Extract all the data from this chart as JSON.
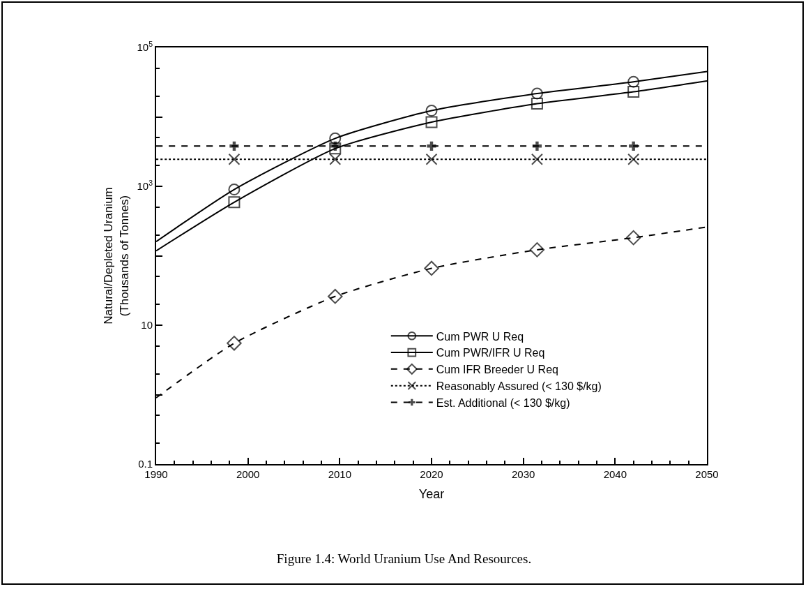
{
  "chart_data": {
    "type": "line",
    "xlabel": "Year",
    "ylabel": "Natural/Depleted Uranium\n(Thousands of Tonnes)",
    "xlim": [
      1990,
      2050
    ],
    "xticks": [
      1990,
      2000,
      2010,
      2020,
      2030,
      2040,
      2050
    ],
    "ylim": [
      0.1,
      100000
    ],
    "yticks": [
      0.1,
      {
        "value": 1,
        "label": null
      },
      10,
      {
        "value": 100,
        "label": null
      },
      {
        "value": 1000,
        "label": "10$^{3}$"
      },
      {
        "value": 10000,
        "label": null
      },
      {
        "value": 100000,
        "label": "10$^{5}$"
      }
    ],
    "log": "y",
    "grid": false,
    "legend": "bottom right",
    "series": [
      {
        "name": "Cum PWR U Req",
        "color": "#000000",
        "marker": "circle",
        "line_style": "solid",
        "x": [
          1990,
          1998.5,
          2009.5,
          2020,
          2031.5,
          2042,
          2050
        ],
        "values": [
          160,
          900,
          4900,
          12300,
          21700,
          32000,
          45000
        ]
      },
      {
        "name": "Cum PWR/IFR U Req",
        "color": "#000000",
        "marker": "square",
        "line_style": "solid",
        "x": [
          1990,
          1998.5,
          2009.5,
          2020,
          2031.5,
          2042,
          2050
        ],
        "values": [
          118,
          590,
          3500,
          8400,
          15500,
          23000,
          33000
        ]
      },
      {
        "name": "Cum IFR Breeder U Req",
        "color": "#000000",
        "marker": "diamond",
        "line_style": "dashed",
        "x": [
          1990,
          1998.5,
          2009.5,
          2020,
          2031.5,
          2042,
          2050
        ],
        "values": [
          0.9,
          5.5,
          26,
          66,
          122,
          182,
          260
        ]
      },
      {
        "name": "Reasonably Assured (< 130 $/kg)",
        "color": "#000000",
        "marker": "x",
        "line_style": "dotted",
        "x": [
          1990,
          1998.5,
          2009.5,
          2020,
          2031.5,
          2042,
          2050
        ],
        "values": [
          2450,
          2450,
          2450,
          2450,
          2450,
          2450,
          2450
        ]
      },
      {
        "name": "Est. Additional (< 130 $/kg)",
        "color": "#000000",
        "marker": "cross",
        "line_style": "dashed",
        "x": [
          1990,
          1998.5,
          2009.5,
          2020,
          2031.5,
          2042,
          2050
        ],
        "values": [
          3800,
          3800,
          3800,
          3800,
          3800,
          3800,
          3800
        ]
      }
    ],
    "annotations": [
      "Figure 1.4:  World Uranium Use And Resources."
    ]
  }
}
